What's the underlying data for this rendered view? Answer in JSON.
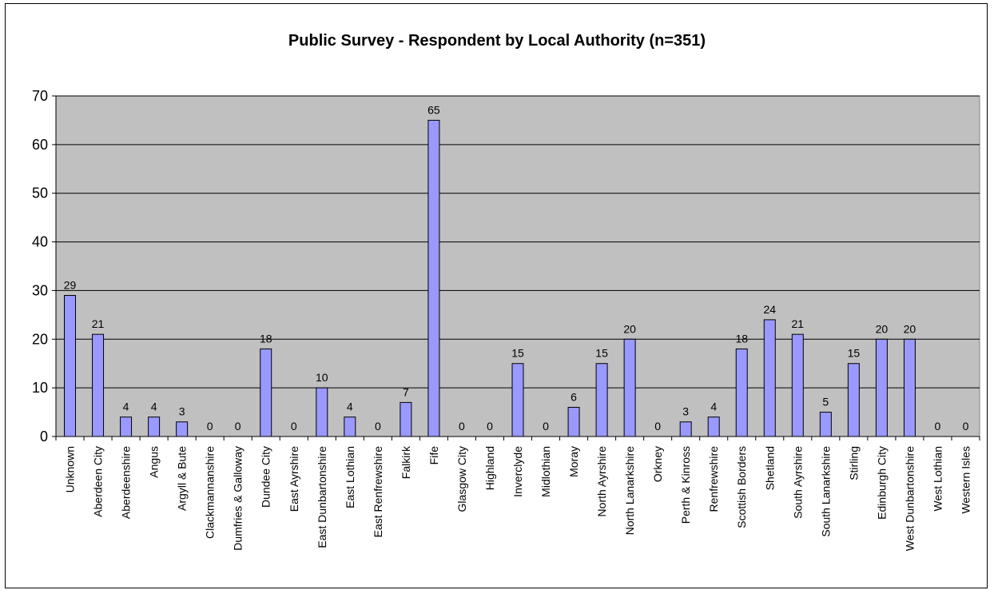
{
  "chart_data": {
    "type": "bar",
    "title": "Public Survey - Respondent by Local Authority (n=351)",
    "xlabel": "",
    "ylabel": "",
    "ylim": [
      0,
      70
    ],
    "yticks": [
      0,
      10,
      20,
      30,
      40,
      50,
      60,
      70
    ],
    "grid": true,
    "legend": "none",
    "colors": {
      "bar": "#9999ff",
      "plot_background": "#c0c0c0"
    },
    "categories": [
      "Unknown",
      "Aberdeen City",
      "Aberdeenshire",
      "Angus",
      "Argyll & Bute",
      "Clackmannanshire",
      "Dumfries & Galloway",
      "Dundee City",
      "East Ayrshire",
      "East Dunbartonshire",
      "East Lothian",
      "East Renfrewshire",
      "Falkirk",
      "Fife",
      "Glasgow City",
      "Highland",
      "Inverclyde",
      "Midlothian",
      "Moray",
      "North Ayrshire",
      "North Lanarkshire",
      "Orkney",
      "Perth & Kinross",
      "Renfrewshire",
      "Scottish Borders",
      "Shetland",
      "South Ayrshire",
      "South Lanarkshire",
      "Stirling",
      "Edinburgh City",
      "West Dunbartonshire",
      "West Lothian",
      "Western Isles"
    ],
    "values": [
      29,
      21,
      4,
      4,
      3,
      0,
      0,
      18,
      0,
      10,
      4,
      0,
      7,
      65,
      0,
      0,
      15,
      0,
      6,
      15,
      20,
      0,
      3,
      4,
      18,
      24,
      21,
      5,
      15,
      20,
      20,
      0,
      0
    ]
  }
}
